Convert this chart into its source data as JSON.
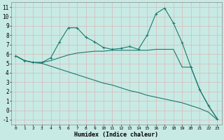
{
  "xlabel": "Humidex (Indice chaleur)",
  "xlim": [
    -0.5,
    23.5
  ],
  "ylim": [
    -1.5,
    11.5
  ],
  "xticks": [
    0,
    1,
    2,
    3,
    4,
    5,
    6,
    7,
    8,
    9,
    10,
    11,
    12,
    13,
    14,
    15,
    16,
    17,
    18,
    19,
    20,
    21,
    22,
    23
  ],
  "yticks": [
    -1,
    0,
    1,
    2,
    3,
    4,
    5,
    6,
    7,
    8,
    9,
    10,
    11
  ],
  "bg_color": "#c8eae4",
  "grid_color": "#b0d8d0",
  "line_color": "#1a7a6e",
  "line1_x": [
    0,
    1,
    2,
    3,
    4,
    5,
    6,
    7,
    8,
    9,
    10,
    11,
    12,
    13,
    14,
    15,
    16,
    17,
    18,
    19,
    20,
    21,
    22,
    23
  ],
  "line1_y": [
    5.8,
    5.3,
    5.1,
    5.1,
    5.6,
    7.3,
    8.8,
    8.8,
    7.8,
    7.3,
    6.7,
    6.5,
    6.6,
    6.8,
    6.5,
    8.0,
    10.3,
    10.9,
    9.3,
    7.2,
    4.6,
    2.2,
    0.5,
    -0.9
  ],
  "line2_x": [
    0,
    1,
    2,
    3,
    4,
    5,
    6,
    7,
    8,
    9,
    10,
    11,
    12,
    13,
    14,
    15,
    16,
    17,
    18,
    19,
    20,
    21,
    22,
    23
  ],
  "line2_y": [
    5.8,
    5.3,
    5.1,
    5.1,
    5.3,
    5.6,
    5.9,
    6.1,
    6.2,
    6.3,
    6.3,
    6.4,
    6.4,
    6.4,
    6.4,
    6.4,
    6.5,
    6.5,
    6.5,
    4.6,
    4.6,
    2.2,
    0.5,
    -0.9
  ],
  "line3_x": [
    0,
    1,
    2,
    3,
    4,
    5,
    6,
    7,
    8,
    9,
    10,
    11,
    12,
    13,
    14,
    15,
    16,
    17,
    18,
    19,
    20,
    21,
    22,
    23
  ],
  "line3_y": [
    5.8,
    5.3,
    5.1,
    5.0,
    4.7,
    4.4,
    4.1,
    3.8,
    3.5,
    3.2,
    2.9,
    2.7,
    2.4,
    2.1,
    1.9,
    1.6,
    1.4,
    1.2,
    1.0,
    0.8,
    0.5,
    0.2,
    -0.2,
    -1.0
  ]
}
